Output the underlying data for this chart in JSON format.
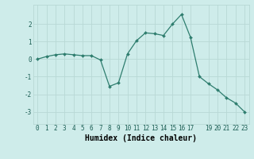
{
  "x": [
    0,
    1,
    2,
    3,
    4,
    5,
    6,
    7,
    8,
    9,
    10,
    11,
    12,
    13,
    14,
    15,
    16,
    17,
    18,
    19,
    20,
    21,
    22,
    23
  ],
  "y": [
    0.0,
    0.15,
    0.25,
    0.3,
    0.25,
    0.2,
    0.2,
    -0.05,
    -1.55,
    -1.35,
    0.3,
    1.05,
    1.5,
    1.45,
    1.35,
    2.0,
    2.55,
    1.25,
    -1.0,
    -1.4,
    -1.75,
    -2.2,
    -2.5,
    -3.0
  ],
  "line_color": "#2e7d6e",
  "marker": "D",
  "marker_size": 2.0,
  "bg_color": "#ceecea",
  "grid_color": "#b8d8d5",
  "xlabel": "Humidex (Indice chaleur)",
  "xlim": [
    -0.5,
    23.5
  ],
  "ylim": [
    -3.7,
    3.1
  ],
  "yticks": [
    -3,
    -2,
    -1,
    0,
    1,
    2
  ],
  "xticks": [
    0,
    1,
    2,
    3,
    4,
    5,
    6,
    7,
    8,
    9,
    10,
    11,
    12,
    13,
    14,
    15,
    16,
    17,
    19,
    20,
    21,
    22,
    23
  ],
  "tick_fontsize": 5.5,
  "xlabel_fontsize": 7.0
}
